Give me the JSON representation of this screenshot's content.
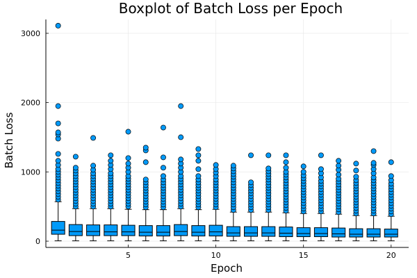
{
  "chart_data": {
    "type": "box",
    "title": "Boxplot of Batch Loss per Epoch",
    "xlabel": "Epoch",
    "ylabel": "Batch Loss",
    "xlim": [
      0.3,
      21.0
    ],
    "ylim": [
      -90,
      3200
    ],
    "xticks": [
      5,
      10,
      15,
      20
    ],
    "yticks": [
      0,
      1000,
      2000,
      3000
    ],
    "grid": true,
    "color": "#009af9",
    "boxes": [
      {
        "epoch": 1,
        "min": 5,
        "q1": 100,
        "median": 160,
        "q3": 285,
        "whisker_high": 570,
        "outliers": [
          600,
          640,
          680,
          720,
          760,
          800,
          840,
          880,
          920,
          960,
          1000,
          1040,
          1100,
          1160,
          1260,
          1480,
          1540,
          1570,
          1700,
          1950,
          3110
        ]
      },
      {
        "epoch": 2,
        "min": 5,
        "q1": 80,
        "median": 140,
        "q3": 240,
        "whisker_high": 470,
        "outliers": [
          500,
          540,
          580,
          620,
          660,
          700,
          740,
          780,
          820,
          860,
          900,
          940,
          980,
          1020,
          1060,
          1220
        ]
      },
      {
        "epoch": 3,
        "min": 5,
        "q1": 80,
        "median": 140,
        "q3": 235,
        "whisker_high": 470,
        "outliers": [
          500,
          540,
          580,
          620,
          660,
          700,
          740,
          780,
          820,
          860,
          900,
          940,
          980,
          1030,
          1090,
          1490
        ]
      },
      {
        "epoch": 4,
        "min": 5,
        "q1": 80,
        "median": 135,
        "q3": 235,
        "whisker_high": 470,
        "outliers": [
          500,
          540,
          580,
          620,
          660,
          700,
          740,
          780,
          820,
          860,
          900,
          940,
          980,
          1040,
          1100,
          1160,
          1240
        ]
      },
      {
        "epoch": 5,
        "min": 5,
        "q1": 80,
        "median": 135,
        "q3": 230,
        "whisker_high": 460,
        "outliers": [
          500,
          540,
          580,
          620,
          660,
          700,
          740,
          780,
          820,
          860,
          900,
          940,
          1000,
          1060,
          1120,
          1200,
          1580
        ]
      },
      {
        "epoch": 6,
        "min": 5,
        "q1": 75,
        "median": 130,
        "q3": 225,
        "whisker_high": 455,
        "outliers": [
          490,
          530,
          570,
          610,
          650,
          690,
          730,
          770,
          810,
          850,
          890,
          1140,
          1310,
          1350
        ]
      },
      {
        "epoch": 7,
        "min": 5,
        "q1": 75,
        "median": 130,
        "q3": 225,
        "whisker_high": 455,
        "outliers": [
          490,
          530,
          570,
          610,
          650,
          690,
          730,
          770,
          810,
          850,
          890,
          940,
          1060,
          1210,
          1640
        ]
      },
      {
        "epoch": 8,
        "min": 5,
        "q1": 80,
        "median": 140,
        "q3": 240,
        "whisker_high": 470,
        "outliers": [
          500,
          540,
          580,
          620,
          660,
          700,
          740,
          780,
          820,
          860,
          900,
          940,
          1000,
          1060,
          1120,
          1180,
          1500,
          1950
        ]
      },
      {
        "epoch": 9,
        "min": 5,
        "q1": 75,
        "median": 130,
        "q3": 225,
        "whisker_high": 455,
        "outliers": [
          490,
          530,
          570,
          610,
          650,
          690,
          730,
          770,
          810,
          850,
          890,
          940,
          1040,
          1160,
          1240,
          1330
        ]
      },
      {
        "epoch": 10,
        "min": 5,
        "q1": 75,
        "median": 135,
        "q3": 230,
        "whisker_high": 460,
        "outliers": [
          490,
          530,
          570,
          610,
          650,
          690,
          730,
          770,
          810,
          850,
          890,
          940,
          990,
          1040,
          1100
        ]
      },
      {
        "epoch": 11,
        "min": 5,
        "q1": 70,
        "median": 120,
        "q3": 210,
        "whisker_high": 420,
        "outliers": [
          450,
          490,
          530,
          570,
          610,
          650,
          690,
          730,
          770,
          810,
          850,
          890,
          930,
          970,
          1010,
          1050,
          1090
        ]
      },
      {
        "epoch": 12,
        "min": 5,
        "q1": 70,
        "median": 120,
        "q3": 210,
        "whisker_high": 420,
        "outliers": [
          450,
          490,
          530,
          570,
          610,
          650,
          690,
          730,
          770,
          810,
          850,
          1240
        ]
      },
      {
        "epoch": 13,
        "min": 5,
        "q1": 70,
        "median": 120,
        "q3": 210,
        "whisker_high": 420,
        "outliers": [
          450,
          490,
          530,
          570,
          610,
          650,
          690,
          730,
          770,
          810,
          850,
          890,
          930,
          970,
          1010,
          1050,
          1240
        ]
      },
      {
        "epoch": 14,
        "min": 5,
        "q1": 65,
        "median": 115,
        "q3": 205,
        "whisker_high": 410,
        "outliers": [
          440,
          480,
          520,
          560,
          600,
          640,
          680,
          720,
          760,
          800,
          840,
          880,
          920,
          960,
          1000,
          1060,
          1140,
          1240
        ]
      },
      {
        "epoch": 15,
        "min": 5,
        "q1": 65,
        "median": 110,
        "q3": 195,
        "whisker_high": 400,
        "outliers": [
          430,
          470,
          510,
          550,
          590,
          630,
          670,
          710,
          750,
          790,
          830,
          870,
          910,
          950,
          1000,
          1080
        ]
      },
      {
        "epoch": 16,
        "min": 5,
        "q1": 65,
        "median": 110,
        "q3": 195,
        "whisker_high": 400,
        "outliers": [
          430,
          470,
          510,
          550,
          590,
          630,
          670,
          710,
          750,
          790,
          830,
          870,
          920,
          980,
          1040,
          1240
        ]
      },
      {
        "epoch": 17,
        "min": 5,
        "q1": 60,
        "median": 105,
        "q3": 190,
        "whisker_high": 390,
        "outliers": [
          420,
          460,
          500,
          540,
          580,
          620,
          660,
          700,
          740,
          780,
          820,
          860,
          900,
          960,
          1030,
          1090,
          1160
        ]
      },
      {
        "epoch": 18,
        "min": 5,
        "q1": 60,
        "median": 100,
        "q3": 180,
        "whisker_high": 370,
        "outliers": [
          400,
          440,
          480,
          520,
          560,
          600,
          640,
          680,
          720,
          760,
          800,
          840,
          880,
          930,
          1020,
          1120
        ]
      },
      {
        "epoch": 19,
        "min": 5,
        "q1": 60,
        "median": 100,
        "q3": 180,
        "whisker_high": 370,
        "outliers": [
          400,
          440,
          480,
          520,
          560,
          600,
          640,
          680,
          720,
          760,
          800,
          840,
          880,
          920,
          980,
          1040,
          1100,
          1130,
          1300
        ]
      },
      {
        "epoch": 20,
        "min": 5,
        "q1": 60,
        "median": 100,
        "q3": 175,
        "whisker_high": 360,
        "outliers": [
          390,
          430,
          470,
          510,
          550,
          590,
          630,
          670,
          710,
          750,
          790,
          830,
          880,
          940,
          1140
        ]
      }
    ]
  }
}
